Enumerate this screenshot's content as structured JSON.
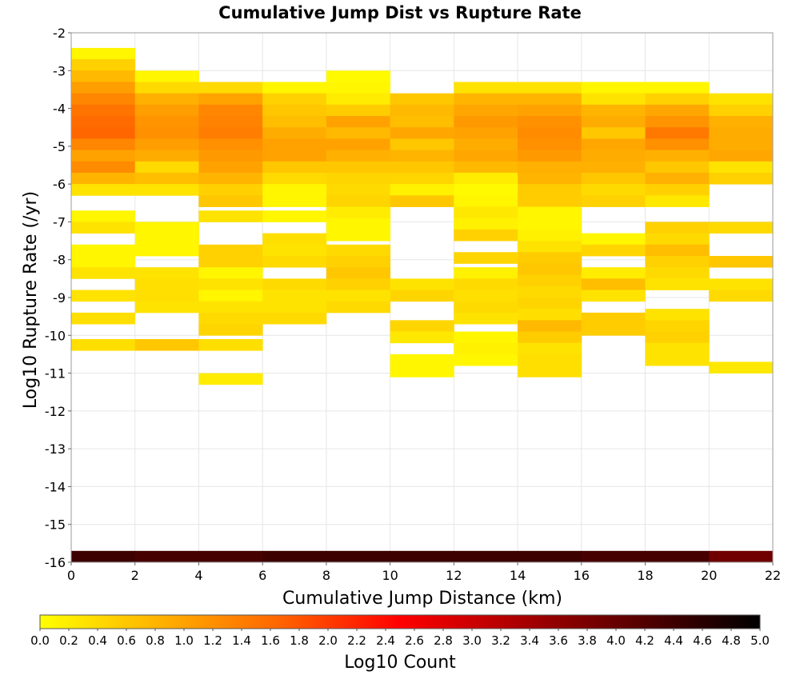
{
  "chart_data": {
    "type": "heatmap",
    "title": "Cumulative Jump Dist vs Rupture Rate",
    "xlabel": "Cumulative Jump Distance (km)",
    "ylabel": "Log10 Rupture Rate (/yr)",
    "xlim": [
      0,
      22
    ],
    "ylim": [
      -16,
      -2
    ],
    "x_ticks": [
      "0",
      "2",
      "4",
      "6",
      "8",
      "10",
      "12",
      "14",
      "16",
      "18",
      "20",
      "22"
    ],
    "y_ticks": [
      "-2",
      "-3",
      "-4",
      "-5",
      "-6",
      "-7",
      "-8",
      "-9",
      "-10",
      "-11",
      "-12",
      "-13",
      "-14",
      "-15",
      "-16"
    ],
    "grid": true,
    "colorbar": {
      "label": "Log10 Count",
      "range": [
        0,
        5
      ],
      "colors": [
        "#ffff00",
        "#ff6600",
        "#ff0000",
        "#000000"
      ],
      "ticks": [
        "0.0",
        "0.2",
        "0.4",
        "0.6",
        "0.8",
        "1.0",
        "1.2",
        "1.4",
        "1.6",
        "1.8",
        "2.0",
        "2.2",
        "2.4",
        "2.6",
        "2.8",
        "3.0",
        "3.2",
        "3.4",
        "3.6",
        "3.8",
        "4.0",
        "4.2",
        "4.4",
        "4.6",
        "4.8",
        "5.0"
      ]
    },
    "x_bin_width": 2,
    "y_bin_height": 0.3,
    "columns": [
      {
        "x0": 0,
        "cells": [
          [
            -2.7,
            0.1
          ],
          [
            -3.0,
            0.5
          ],
          [
            -3.3,
            0.75
          ],
          [
            -3.6,
            1.05
          ],
          [
            -3.9,
            1.3
          ],
          [
            -4.2,
            1.5
          ],
          [
            -4.5,
            1.6
          ],
          [
            -4.8,
            1.65
          ],
          [
            -5.1,
            1.3
          ],
          [
            -5.4,
            1.0
          ],
          [
            -5.7,
            1.25
          ],
          [
            -6.0,
            0.8
          ],
          [
            -6.3,
            0.3
          ],
          [
            -7.0,
            0.1
          ],
          [
            -7.3,
            0.3
          ],
          [
            -7.9,
            0.1
          ],
          [
            -8.2,
            0.1
          ],
          [
            -8.5,
            0.3
          ],
          [
            -9.1,
            0.3
          ],
          [
            -9.7,
            0.35
          ],
          [
            -10.4,
            0.35
          ],
          [
            -16.0,
            4.4
          ]
        ]
      },
      {
        "x0": 2,
        "cells": [
          [
            -3.3,
            0.1
          ],
          [
            -3.6,
            0.4
          ],
          [
            -3.9,
            0.85
          ],
          [
            -4.2,
            1.05
          ],
          [
            -4.5,
            1.15
          ],
          [
            -4.8,
            1.2
          ],
          [
            -5.1,
            1.05
          ],
          [
            -5.4,
            0.9
          ],
          [
            -5.7,
            0.4
          ],
          [
            -6.0,
            0.7
          ],
          [
            -6.3,
            0.3
          ],
          [
            -7.3,
            0.1
          ],
          [
            -7.6,
            0.1
          ],
          [
            -7.9,
            0.1
          ],
          [
            -8.5,
            0.3
          ],
          [
            -8.8,
            0.35
          ],
          [
            -9.1,
            0.35
          ],
          [
            -9.4,
            0.3
          ],
          [
            -10.4,
            0.6
          ],
          [
            -16.0,
            4.3
          ]
        ]
      },
      {
        "x0": 4,
        "cells": [
          [
            -3.6,
            0.4
          ],
          [
            -3.9,
            1.0
          ],
          [
            -4.2,
            1.3
          ],
          [
            -4.5,
            1.35
          ],
          [
            -4.8,
            1.4
          ],
          [
            -5.1,
            1.2
          ],
          [
            -5.4,
            1.1
          ],
          [
            -5.7,
            1.0
          ],
          [
            -6.0,
            0.8
          ],
          [
            -6.3,
            0.5
          ],
          [
            -6.6,
            0.6
          ],
          [
            -7.0,
            0.3
          ],
          [
            -7.9,
            0.5
          ],
          [
            -8.2,
            0.5
          ],
          [
            -8.5,
            0.1
          ],
          [
            -8.8,
            0.3
          ],
          [
            -9.1,
            0.1
          ],
          [
            -9.4,
            0.3
          ],
          [
            -9.7,
            0.4
          ],
          [
            -10.0,
            0.45
          ],
          [
            -10.4,
            0.35
          ],
          [
            -11.3,
            0.2
          ],
          [
            -16.0,
            4.3
          ]
        ]
      },
      {
        "x0": 6,
        "cells": [
          [
            -3.6,
            0.1
          ],
          [
            -3.9,
            0.5
          ],
          [
            -4.2,
            0.6
          ],
          [
            -4.5,
            0.7
          ],
          [
            -4.8,
            0.9
          ],
          [
            -5.1,
            1.0
          ],
          [
            -5.4,
            1.0
          ],
          [
            -5.7,
            0.6
          ],
          [
            -6.0,
            0.4
          ],
          [
            -6.3,
            0.1
          ],
          [
            -6.6,
            0.1
          ],
          [
            -7.0,
            0.1
          ],
          [
            -7.6,
            0.35
          ],
          [
            -7.9,
            0.3
          ],
          [
            -8.2,
            0.4
          ],
          [
            -8.8,
            0.4
          ],
          [
            -9.1,
            0.3
          ],
          [
            -9.4,
            0.3
          ],
          [
            -9.7,
            0.4
          ],
          [
            -16.0,
            4.4
          ]
        ]
      },
      {
        "x0": 8,
        "cells": [
          [
            -3.3,
            0.05
          ],
          [
            -3.6,
            0.1
          ],
          [
            -3.9,
            0.2
          ],
          [
            -4.2,
            0.55
          ],
          [
            -4.5,
            1.0
          ],
          [
            -4.8,
            0.75
          ],
          [
            -5.1,
            1.0
          ],
          [
            -5.4,
            0.85
          ],
          [
            -5.7,
            0.6
          ],
          [
            -6.0,
            0.45
          ],
          [
            -6.3,
            0.4
          ],
          [
            -6.6,
            0.45
          ],
          [
            -6.9,
            0.2
          ],
          [
            -7.2,
            0.1
          ],
          [
            -7.5,
            0.1
          ],
          [
            -7.9,
            0.4
          ],
          [
            -8.2,
            0.5
          ],
          [
            -8.5,
            0.6
          ],
          [
            -8.8,
            0.5
          ],
          [
            -9.1,
            0.3
          ],
          [
            -9.4,
            0.4
          ],
          [
            -16.0,
            4.4
          ]
        ]
      },
      {
        "x0": 10,
        "cells": [
          [
            -3.9,
            0.6
          ],
          [
            -4.2,
            0.75
          ],
          [
            -4.5,
            0.7
          ],
          [
            -4.8,
            0.95
          ],
          [
            -5.1,
            0.6
          ],
          [
            -5.4,
            0.8
          ],
          [
            -5.7,
            0.6
          ],
          [
            -6.0,
            0.45
          ],
          [
            -6.3,
            0.15
          ],
          [
            -6.6,
            0.6
          ],
          [
            -8.8,
            0.3
          ],
          [
            -9.1,
            0.45
          ],
          [
            -9.9,
            0.45
          ],
          [
            -10.2,
            0.25
          ],
          [
            -10.8,
            0.1
          ],
          [
            -11.1,
            0.1
          ],
          [
            -16.0,
            4.4
          ]
        ]
      },
      {
        "x0": 12,
        "cells": [
          [
            -3.6,
            0.3
          ],
          [
            -3.9,
            0.8
          ],
          [
            -4.2,
            0.95
          ],
          [
            -4.5,
            1.1
          ],
          [
            -4.8,
            1.0
          ],
          [
            -5.1,
            0.9
          ],
          [
            -5.4,
            0.95
          ],
          [
            -5.7,
            0.75
          ],
          [
            -6.0,
            0.2
          ],
          [
            -6.3,
            0.05
          ],
          [
            -6.6,
            0.1
          ],
          [
            -6.9,
            0.25
          ],
          [
            -7.2,
            0.15
          ],
          [
            -7.5,
            0.5
          ],
          [
            -8.1,
            0.45
          ],
          [
            -8.5,
            0.15
          ],
          [
            -8.8,
            0.4
          ],
          [
            -9.1,
            0.35
          ],
          [
            -9.4,
            0.4
          ],
          [
            -9.7,
            0.3
          ],
          [
            -10.2,
            0.1
          ],
          [
            -10.5,
            0.15
          ],
          [
            -10.8,
            0.1
          ],
          [
            -16.0,
            4.4
          ]
        ]
      },
      {
        "x0": 14,
        "cells": [
          [
            -3.6,
            0.3
          ],
          [
            -3.9,
            0.8
          ],
          [
            -4.2,
            1.0
          ],
          [
            -4.5,
            1.2
          ],
          [
            -4.8,
            1.25
          ],
          [
            -5.1,
            1.2
          ],
          [
            -5.4,
            1.1
          ],
          [
            -5.7,
            0.85
          ],
          [
            -6.0,
            0.8
          ],
          [
            -6.3,
            0.55
          ],
          [
            -6.6,
            0.55
          ],
          [
            -6.9,
            0.1
          ],
          [
            -7.2,
            0.1
          ],
          [
            -7.5,
            0.15
          ],
          [
            -7.8,
            0.3
          ],
          [
            -8.1,
            0.55
          ],
          [
            -8.4,
            0.6
          ],
          [
            -8.7,
            0.5
          ],
          [
            -9.0,
            0.4
          ],
          [
            -9.3,
            0.45
          ],
          [
            -9.6,
            0.35
          ],
          [
            -9.9,
            0.75
          ],
          [
            -10.2,
            0.55
          ],
          [
            -10.5,
            0.3
          ],
          [
            -10.8,
            0.35
          ],
          [
            -11.1,
            0.35
          ],
          [
            -16.0,
            4.4
          ]
        ]
      },
      {
        "x0": 16,
        "cells": [
          [
            -3.6,
            0.1
          ],
          [
            -3.9,
            0.3
          ],
          [
            -4.2,
            0.8
          ],
          [
            -4.5,
            0.9
          ],
          [
            -4.8,
            0.6
          ],
          [
            -5.1,
            0.95
          ],
          [
            -5.4,
            0.9
          ],
          [
            -5.7,
            0.85
          ],
          [
            -6.0,
            0.6
          ],
          [
            -6.3,
            0.4
          ],
          [
            -6.6,
            0.5
          ],
          [
            -7.6,
            0.1
          ],
          [
            -7.9,
            0.45
          ],
          [
            -8.5,
            0.2
          ],
          [
            -8.8,
            0.7
          ],
          [
            -9.1,
            0.3
          ],
          [
            -9.7,
            0.55
          ],
          [
            -10.0,
            0.55
          ],
          [
            -16.0,
            4.3
          ]
        ]
      },
      {
        "x0": 18,
        "cells": [
          [
            -3.6,
            0.1
          ],
          [
            -3.9,
            0.5
          ],
          [
            -4.2,
            0.95
          ],
          [
            -4.5,
            1.15
          ],
          [
            -4.8,
            1.45
          ],
          [
            -5.1,
            1.2
          ],
          [
            -5.4,
            0.85
          ],
          [
            -5.7,
            0.6
          ],
          [
            -6.0,
            0.85
          ],
          [
            -6.3,
            0.5
          ],
          [
            -6.6,
            0.25
          ],
          [
            -7.3,
            0.5
          ],
          [
            -7.6,
            0.4
          ],
          [
            -7.9,
            0.7
          ],
          [
            -8.2,
            0.5
          ],
          [
            -8.5,
            0.4
          ],
          [
            -8.8,
            0.3
          ],
          [
            -9.6,
            0.3
          ],
          [
            -9.9,
            0.45
          ],
          [
            -10.2,
            0.5
          ],
          [
            -10.5,
            0.3
          ],
          [
            -10.8,
            0.3
          ],
          [
            -16.0,
            4.3
          ]
        ]
      },
      {
        "x0": 20,
        "cells": [
          [
            -3.9,
            0.3
          ],
          [
            -4.2,
            0.5
          ],
          [
            -4.5,
            0.85
          ],
          [
            -4.8,
            0.9
          ],
          [
            -5.1,
            0.9
          ],
          [
            -5.4,
            0.95
          ],
          [
            -5.7,
            0.3
          ],
          [
            -6.0,
            0.5
          ],
          [
            -7.3,
            0.4
          ],
          [
            -8.2,
            0.6
          ],
          [
            -8.8,
            0.3
          ],
          [
            -9.1,
            0.4
          ],
          [
            -11.0,
            0.25
          ],
          [
            -16.0,
            3.9
          ]
        ]
      }
    ]
  }
}
